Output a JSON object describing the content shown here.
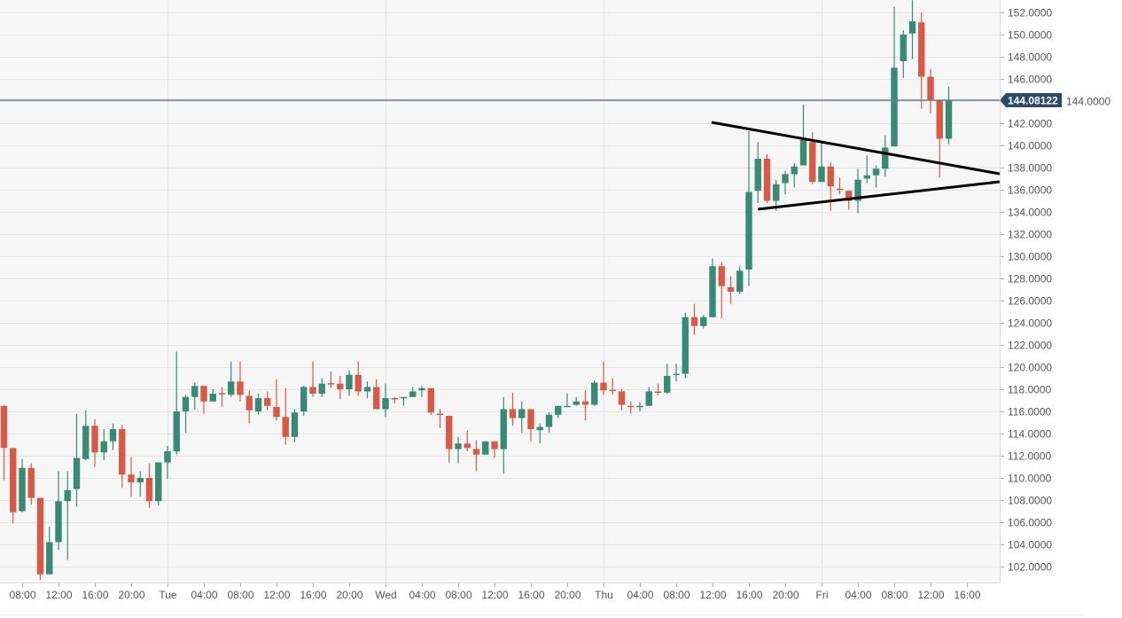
{
  "chart_data": {
    "type": "candlestick",
    "title": "",
    "interval": "1h",
    "start": "Mon 06:00",
    "colors": {
      "up": "#388a74",
      "down": "#d75a48",
      "price_line": "#6a7d98",
      "price_label": "#2c4a6c",
      "trendline": "#000000"
    },
    "ylim": [
      100.8,
      153.1
    ],
    "y_ticks": [
      "102.0000",
      "104.0000",
      "106.0000",
      "108.0000",
      "110.0000",
      "112.0000",
      "114.0000",
      "116.0000",
      "118.0000",
      "120.0000",
      "122.0000",
      "124.0000",
      "126.0000",
      "128.0000",
      "130.0000",
      "132.0000",
      "134.0000",
      "136.0000",
      "138.0000",
      "140.0000",
      "142.0000",
      "144.0000",
      "146.0000",
      "148.0000",
      "150.0000",
      "152.0000"
    ],
    "y_tick_values": [
      102,
      104,
      106,
      108,
      110,
      112,
      114,
      116,
      118,
      120,
      122,
      124,
      126,
      128,
      130,
      132,
      134,
      136,
      138,
      140,
      142,
      144,
      146,
      148,
      150,
      152
    ],
    "x_ticks": [
      "08:00",
      "12:00",
      "16:00",
      "20:00",
      "Tue",
      "04:00",
      "08:00",
      "12:00",
      "16:00",
      "20:00",
      "Wed",
      "04:00",
      "08:00",
      "12:00",
      "16:00",
      "20:00",
      "Thu",
      "04:00",
      "08:00",
      "12:00",
      "16:00",
      "20:00",
      "Fri",
      "04:00",
      "08:00",
      "12:00",
      "16:00"
    ],
    "x_tick_hours": [
      8,
      12,
      16,
      20,
      24,
      28,
      32,
      36,
      40,
      44,
      48,
      52,
      56,
      60,
      64,
      68,
      72,
      76,
      80,
      84,
      88,
      92,
      96,
      100,
      104,
      108,
      112
    ],
    "day_boundaries_hours": [
      24,
      48,
      72,
      96
    ],
    "first_candle_hour": 6,
    "current_price": 144.08122,
    "current_price_label": "144.08122",
    "trendlines": [
      {
        "name": "upper-trendline",
        "from": {
          "hour": 83.9,
          "value": 142.08
        },
        "to": {
          "hour": 115.6,
          "value": 137.44
        }
      },
      {
        "name": "lower-trendline",
        "from": {
          "hour": 89.0,
          "value": 134.24
        },
        "to": {
          "hour": 115.6,
          "value": 136.72
        }
      }
    ],
    "ohlc": [
      [
        116.5,
        116.6,
        109.8,
        112.7
      ],
      [
        112.7,
        112.7,
        105.9,
        106.9
      ],
      [
        107.0,
        111.7,
        106.9,
        110.9
      ],
      [
        110.9,
        111.3,
        107.6,
        108.2
      ],
      [
        108.2,
        108.2,
        100.8,
        101.3
      ],
      [
        101.3,
        105.6,
        101.3,
        104.2
      ],
      [
        104.2,
        110.6,
        103.5,
        107.9
      ],
      [
        107.9,
        110.6,
        102.6,
        108.9
      ],
      [
        109.0,
        115.8,
        107.4,
        111.8
      ],
      [
        111.7,
        116.1,
        111.6,
        114.7
      ],
      [
        114.7,
        115.3,
        111.0,
        112.3
      ],
      [
        112.3,
        114.4,
        111.6,
        113.3
      ],
      [
        113.3,
        114.9,
        112.5,
        114.4
      ],
      [
        114.4,
        114.8,
        109.1,
        110.3
      ],
      [
        110.3,
        111.9,
        108.3,
        109.6
      ],
      [
        109.6,
        110.6,
        108.3,
        110.0
      ],
      [
        110.0,
        111.3,
        107.3,
        107.9
      ],
      [
        107.9,
        111.4,
        107.5,
        111.4
      ],
      [
        111.4,
        112.9,
        109.9,
        112.4
      ],
      [
        112.4,
        121.4,
        112.1,
        116.0
      ],
      [
        116.0,
        117.5,
        114.1,
        117.3
      ],
      [
        117.3,
        118.6,
        116.2,
        118.3
      ],
      [
        118.3,
        118.3,
        115.8,
        116.9
      ],
      [
        116.9,
        118.0,
        116.9,
        117.6
      ],
      [
        117.65,
        118.2,
        116.4,
        117.6
      ],
      [
        117.5,
        120.5,
        117.3,
        118.7
      ],
      [
        118.7,
        120.5,
        116.9,
        117.5
      ],
      [
        117.4,
        117.9,
        114.9,
        116.1
      ],
      [
        116.0,
        117.6,
        115.7,
        117.2
      ],
      [
        117.2,
        117.8,
        116.1,
        116.5
      ],
      [
        116.4,
        118.9,
        115.2,
        115.5
      ],
      [
        115.5,
        118.1,
        113.0,
        113.7
      ],
      [
        113.7,
        116.2,
        113.2,
        115.9
      ],
      [
        116.0,
        118.3,
        115.6,
        118.2
      ],
      [
        118.2,
        120.5,
        117.3,
        117.6
      ],
      [
        117.6,
        119.0,
        117.3,
        118.5
      ],
      [
        118.55,
        119.6,
        118.1,
        118.5
      ],
      [
        118.5,
        119.2,
        117.1,
        118.0
      ],
      [
        118.0,
        119.7,
        117.4,
        119.3
      ],
      [
        119.3,
        120.5,
        117.4,
        117.8
      ],
      [
        117.8,
        118.7,
        117.2,
        118.2
      ],
      [
        118.2,
        118.9,
        116.2,
        116.2
      ],
      [
        116.2,
        118.5,
        115.5,
        117.2
      ],
      [
        117.2,
        117.3,
        116.7,
        117.1
      ],
      [
        117.2,
        117.3,
        116.5,
        117.3
      ],
      [
        117.3,
        118.2,
        117.3,
        117.8
      ],
      [
        117.9,
        118.3,
        117.3,
        118.1
      ],
      [
        118.1,
        118.1,
        115.7,
        115.9
      ],
      [
        115.8,
        116.2,
        114.5,
        115.7
      ],
      [
        115.6,
        115.6,
        111.4,
        112.6
      ],
      [
        112.6,
        113.7,
        111.3,
        113.1
      ],
      [
        113.1,
        114.3,
        112.4,
        112.7
      ],
      [
        112.6,
        113.4,
        110.6,
        112.1
      ],
      [
        112.1,
        113.3,
        112.1,
        113.3
      ],
      [
        113.3,
        113.3,
        111.8,
        112.6
      ],
      [
        112.6,
        117.3,
        110.4,
        116.2
      ],
      [
        116.2,
        117.7,
        114.7,
        115.4
      ],
      [
        115.4,
        116.9,
        114.1,
        116.2
      ],
      [
        116.2,
        116.2,
        113.3,
        114.4
      ],
      [
        114.3,
        114.9,
        113.1,
        114.6
      ],
      [
        114.6,
        115.9,
        114.1,
        115.7
      ],
      [
        115.7,
        116.5,
        115.4,
        116.5
      ],
      [
        116.4,
        117.6,
        116.4,
        116.5
      ],
      [
        116.6,
        117.3,
        116.5,
        116.9
      ],
      [
        116.9,
        117.9,
        115.2,
        116.6
      ],
      [
        116.6,
        118.8,
        116.5,
        118.6
      ],
      [
        118.6,
        120.5,
        117.5,
        117.9
      ],
      [
        117.95,
        119.0,
        117.5,
        117.9
      ],
      [
        117.8,
        118.0,
        116.1,
        116.6
      ],
      [
        116.5,
        116.9,
        115.8,
        116.4
      ],
      [
        116.4,
        116.8,
        116.0,
        116.5
      ],
      [
        116.5,
        118.2,
        116.5,
        117.8
      ],
      [
        117.8,
        118.5,
        117.5,
        117.7
      ],
      [
        117.7,
        120.3,
        117.6,
        119.2
      ],
      [
        119.3,
        120.3,
        118.7,
        119.4
      ],
      [
        119.4,
        124.9,
        119.0,
        124.5
      ],
      [
        124.5,
        125.7,
        122.9,
        123.7
      ],
      [
        123.7,
        124.7,
        123.5,
        124.5
      ],
      [
        124.5,
        129.8,
        124.5,
        129.1
      ],
      [
        129.1,
        129.5,
        124.4,
        127.3
      ],
      [
        127.2,
        128.2,
        125.7,
        126.8
      ],
      [
        126.8,
        129.1,
        126.6,
        128.7
      ],
      [
        128.8,
        141.3,
        127.3,
        135.8
      ],
      [
        135.9,
        140.3,
        134.8,
        138.8
      ],
      [
        138.8,
        139.2,
        134.8,
        135.0
      ],
      [
        135.0,
        136.9,
        134.1,
        136.5
      ],
      [
        136.6,
        137.7,
        135.6,
        137.4
      ],
      [
        137.4,
        138.4,
        136.2,
        138.1
      ],
      [
        138.2,
        143.7,
        138.2,
        140.5
      ],
      [
        140.3,
        141.2,
        136.5,
        136.7
      ],
      [
        136.7,
        140.3,
        136.7,
        138.1
      ],
      [
        138.1,
        138.5,
        134.1,
        136.3
      ],
      [
        136.1,
        137.1,
        135.6,
        136.0
      ],
      [
        135.9,
        135.9,
        134.2,
        135.0
      ],
      [
        135.0,
        137.9,
        133.9,
        136.9
      ],
      [
        137.0,
        139.1,
        136.6,
        137.3
      ],
      [
        137.3,
        138.2,
        136.2,
        137.9
      ],
      [
        137.9,
        140.9,
        137.2,
        139.8
      ],
      [
        139.9,
        152.5,
        139.9,
        147.0
      ],
      [
        147.6,
        150.4,
        146.1,
        150.0
      ],
      [
        150.1,
        153.1,
        147.8,
        151.2
      ],
      [
        151.1,
        152.0,
        143.3,
        146.2
      ],
      [
        146.2,
        146.9,
        142.9,
        144.1
      ],
      [
        144.1,
        144.1,
        137.1,
        140.6
      ],
      [
        140.6,
        145.3,
        140.1,
        144.08
      ]
    ]
  }
}
